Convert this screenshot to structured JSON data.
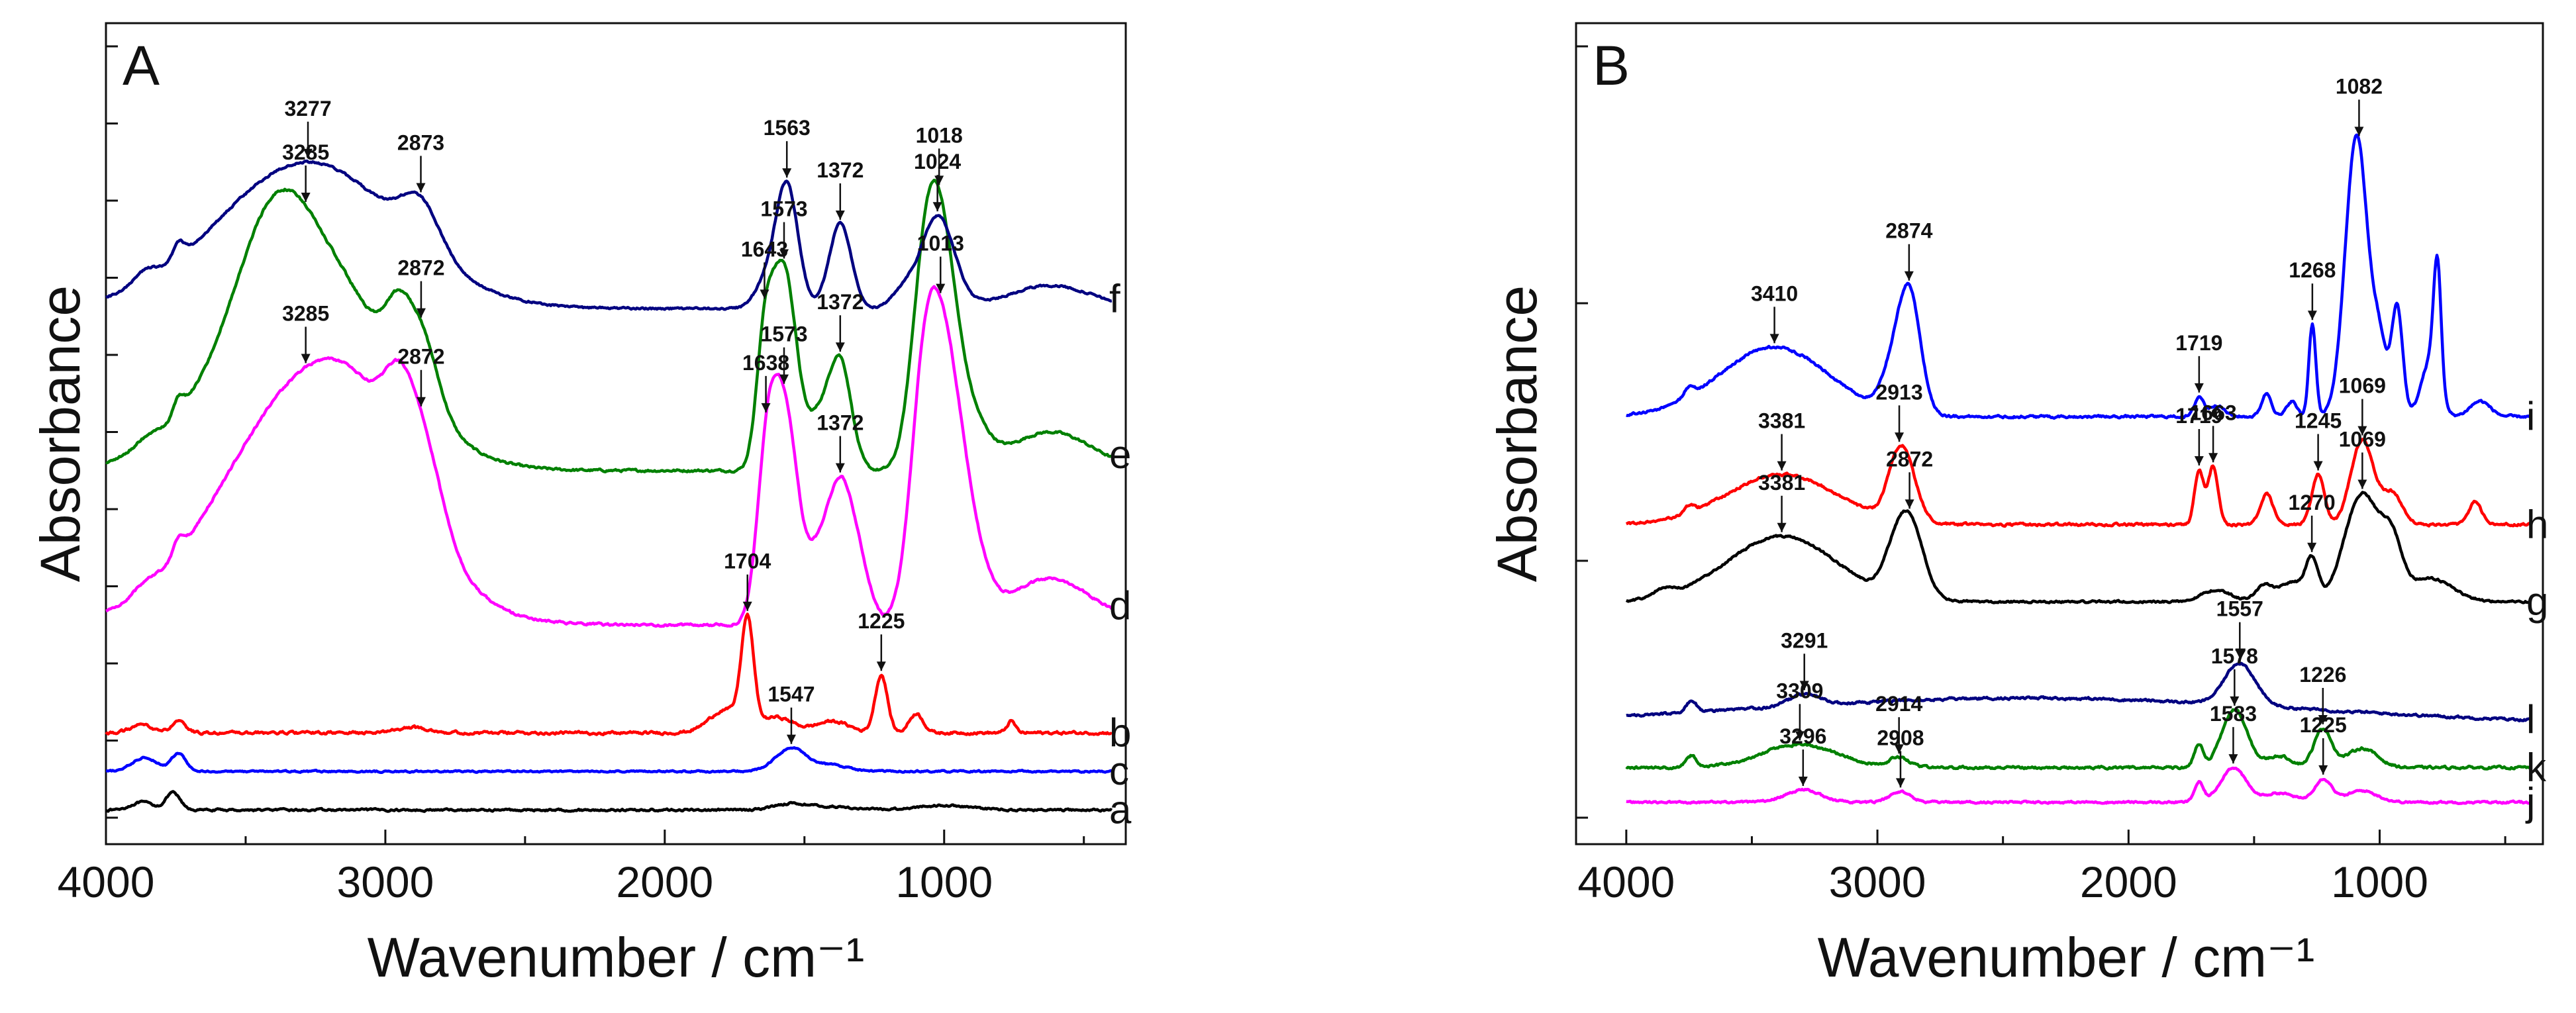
{
  "chart_data": [
    {
      "type": "line",
      "panel": "A",
      "xlabel": "Wavenumber / cm⁻¹",
      "ylabel": "Absorbance",
      "xlim": [
        4000,
        350
      ],
      "ylim": [
        0,
        100
      ],
      "xticks": [
        4000,
        3000,
        2000,
        1000
      ],
      "xtick_labels": [
        "4000",
        "3000",
        "2000",
        "1000"
      ],
      "yticks": [
        0,
        10,
        20,
        30,
        40,
        50,
        60,
        70,
        80,
        90,
        100
      ],
      "series": [
        {
          "name": "a",
          "color": "#000000",
          "baseline": 1.0,
          "noise": 0.25,
          "feats": [
            [
              3760,
              2.2,
              25
            ],
            [
              3870,
              1.0,
              40
            ],
            [
              1550,
              0.8,
              60
            ],
            [
              1400,
              0.4,
              80
            ],
            [
              1000,
              0.6,
              100
            ]
          ],
          "peaks": []
        },
        {
          "name": "c",
          "color": "#0000ff",
          "baseline": 6.0,
          "noise": 0.2,
          "feats": [
            [
              3860,
              1.8,
              45
            ],
            [
              3740,
              2.3,
              25
            ],
            [
              1547,
              3.0,
              55
            ],
            [
              1400,
              0.8,
              60
            ]
          ],
          "peaks": [
            {
              "x": 1547,
              "label": "1547"
            }
          ]
        },
        {
          "name": "b",
          "color": "#ff0000",
          "baseline": 11.0,
          "noise": 0.35,
          "feats": [
            [
              3870,
              1.0,
              40
            ],
            [
              3740,
              1.4,
              25
            ],
            [
              2900,
              0.7,
              60
            ],
            [
              1704,
              13.5,
              22
            ],
            [
              1780,
              3.0,
              60
            ],
            [
              1600,
              2.0,
              60
            ],
            [
              1400,
              1.5,
              60
            ],
            [
              1225,
              7.5,
              22
            ],
            [
              1100,
              2.5,
              25
            ],
            [
              760,
              1.5,
              15
            ]
          ],
          "peaks": [
            {
              "x": 1704,
              "label": "1704"
            },
            {
              "x": 1225,
              "label": "1225"
            }
          ]
        },
        {
          "name": "d",
          "color": "#ff00ff",
          "baseline": 25.0,
          "noise": 0.3,
          "feats": [
            [
              3285,
              30,
              300
            ],
            [
              3050,
              8,
              180
            ],
            [
              2872,
              10,
              70
            ],
            [
              2960,
              6,
              50
            ],
            [
              3740,
              2,
              20
            ],
            [
              3860,
              1,
              40
            ],
            [
              1638,
              15,
              35
            ],
            [
              1573,
              28,
              50
            ],
            [
              1372,
              17,
              45
            ],
            [
              1450,
              7,
              40
            ],
            [
              1300,
              6,
              40
            ],
            [
              1013,
              37,
              70
            ],
            [
              1080,
              13,
              45
            ],
            [
              900,
              6,
              60
            ],
            [
              620,
              6,
              150
            ]
          ],
          "peaks": [
            {
              "x": 3285,
              "label": "3285"
            },
            {
              "x": 2872,
              "label": "2872"
            },
            {
              "x": 1638,
              "label": "1638"
            },
            {
              "x": 1573,
              "label": "1573"
            },
            {
              "x": 1372,
              "label": "1372"
            },
            {
              "x": 1013,
              "label": "1013"
            }
          ]
        },
        {
          "name": "e",
          "color": "#008000",
          "baseline": 45.0,
          "noise": 0.3,
          "feats": [
            [
              3285,
              28,
              280
            ],
            [
              3400,
              10,
              120
            ],
            [
              2872,
              9,
              60
            ],
            [
              2960,
              6,
              45
            ],
            [
              3740,
              2,
              20
            ],
            [
              3860,
              1,
              40
            ],
            [
              1643,
              14,
              30
            ],
            [
              1573,
              26,
              45
            ],
            [
              1372,
              14,
              40
            ],
            [
              1450,
              6,
              40
            ],
            [
              1018,
              31,
              60
            ],
            [
              1080,
              12,
              45
            ],
            [
              900,
              5,
              60
            ],
            [
              620,
              5,
              150
            ]
          ],
          "peaks": [
            {
              "x": 3285,
              "label": "3285"
            },
            {
              "x": 2872,
              "label": "2872"
            },
            {
              "x": 1643,
              "label": "1643"
            },
            {
              "x": 1573,
              "label": "1573"
            },
            {
              "x": 1372,
              "label": "1372"
            },
            {
              "x": 1018,
              "label": "1018"
            }
          ]
        },
        {
          "name": "f",
          "color": "#000080",
          "baseline": 66.0,
          "noise": 0.25,
          "feats": [
            [
              3277,
              19,
              320
            ],
            [
              2873,
              6,
              70
            ],
            [
              3740,
              2,
              20
            ],
            [
              3860,
              1.5,
              40
            ],
            [
              1563,
              16,
              40
            ],
            [
              1640,
              3,
              40
            ],
            [
              1372,
              11,
              40
            ],
            [
              1024,
              12,
              60
            ],
            [
              1150,
              2,
              40
            ],
            [
              620,
              3,
              150
            ]
          ],
          "peaks": [
            {
              "x": 3277,
              "label": "3277"
            },
            {
              "x": 2873,
              "label": "2873"
            },
            {
              "x": 1563,
              "label": "1563"
            },
            {
              "x": 1372,
              "label": "1372"
            },
            {
              "x": 1024,
              "label": "1024"
            }
          ]
        }
      ]
    },
    {
      "type": "line",
      "panel": "B",
      "xlabel": "Wavenumber / cm⁻¹",
      "ylabel": "Absorbance",
      "xlim": [
        4200,
        350
      ],
      "ylim": [
        0,
        100
      ],
      "xticks": [
        4000,
        3000,
        2000,
        1000
      ],
      "xtick_labels": [
        "4000",
        "3000",
        "2000",
        "1000"
      ],
      "yticks": [
        0,
        33.3,
        66.7,
        100
      ],
      "series": [
        {
          "name": "j",
          "color": "#ff00ff",
          "baseline": 2.0,
          "noise": 0.25,
          "feats": [
            [
              3296,
              1.6,
              70
            ],
            [
              2908,
              1.4,
              40
            ],
            [
              1720,
              2.5,
              18
            ],
            [
              1583,
              4.5,
              50
            ],
            [
              1400,
              1.2,
              60
            ],
            [
              1225,
              3.0,
              35
            ],
            [
              1070,
              1.5,
              60
            ]
          ],
          "peaks": [
            {
              "x": 3296,
              "label": "3296"
            },
            {
              "x": 2908,
              "label": "2908"
            },
            {
              "x": 1583,
              "label": "1583"
            },
            {
              "x": 1225,
              "label": "1225"
            }
          ]
        },
        {
          "name": "k",
          "color": "#008000",
          "baseline": 6.5,
          "noise": 0.3,
          "feats": [
            [
              3309,
              3.0,
              150
            ],
            [
              3740,
              1.5,
              20
            ],
            [
              2914,
              1.2,
              40
            ],
            [
              1720,
              3.0,
              18
            ],
            [
              1578,
              7.5,
              50
            ],
            [
              1226,
              5.0,
              35
            ],
            [
              1400,
              1.5,
              50
            ],
            [
              1070,
              2.5,
              60
            ]
          ],
          "peaks": [
            {
              "x": 3309,
              "label": "3309"
            },
            {
              "x": 2914,
              "label": "2914"
            },
            {
              "x": 1578,
              "label": "1578"
            },
            {
              "x": 1226,
              "label": "1226"
            }
          ]
        },
        {
          "name": "l",
          "color": "#000080",
          "baseline": 12.0,
          "noise": 0.3,
          "feats": [
            [
              3291,
              1.5,
              60
            ],
            [
              3740,
              1.5,
              20
            ],
            [
              2400,
              3.5,
              1100
            ],
            [
              1557,
              5.5,
              60
            ]
          ],
          "peaks": [
            {
              "x": 3291,
              "label": "3291"
            },
            {
              "x": 1557,
              "label": "1557"
            }
          ]
        },
        {
          "name": "g",
          "color": "#000000",
          "baseline": 28.0,
          "noise": 0.25,
          "feats": [
            [
              3381,
              8.5,
              220
            ],
            [
              3850,
              1.0,
              40
            ],
            [
              2872,
              10.0,
              55
            ],
            [
              2940,
              3.0,
              45
            ],
            [
              1650,
              1.5,
              60
            ],
            [
              1460,
              2.0,
              35
            ],
            [
              1350,
              2.5,
              50
            ],
            [
              1270,
              5.0,
              25
            ],
            [
              1069,
              14.0,
              70
            ],
            [
              950,
              6.0,
              40
            ],
            [
              800,
              3.0,
              90
            ]
          ],
          "peaks": [
            {
              "x": 3381,
              "label": "3381"
            },
            {
              "x": 2872,
              "label": "2872"
            },
            {
              "x": 1270,
              "label": "1270"
            },
            {
              "x": 1069,
              "label": "1069"
            }
          ]
        },
        {
          "name": "h",
          "color": "#ff0000",
          "baseline": 38.0,
          "noise": 0.3,
          "feats": [
            [
              3381,
              6.5,
              220
            ],
            [
              3750,
              1.0,
              20
            ],
            [
              2913,
              8.5,
              45
            ],
            [
              2860,
              2.5,
              40
            ],
            [
              1719,
              7.0,
              18
            ],
            [
              1663,
              7.5,
              20
            ],
            [
              1450,
              4.0,
              25
            ],
            [
              1245,
              6.5,
              25
            ],
            [
              1069,
              11.0,
              45
            ],
            [
              950,
              4.0,
              40
            ],
            [
              620,
              3.0,
              25
            ]
          ],
          "peaks": [
            {
              "x": 3381,
              "label": "3381"
            },
            {
              "x": 2913,
              "label": "2913"
            },
            {
              "x": 1719,
              "label": "1719"
            },
            {
              "x": 1663,
              "label": "1663"
            },
            {
              "x": 1245,
              "label": "1245"
            },
            {
              "x": 1069,
              "label": "1069"
            }
          ]
        },
        {
          "name": "i",
          "color": "#0000ff",
          "baseline": 52.0,
          "noise": 0.3,
          "feats": [
            [
              3410,
              9.0,
              220
            ],
            [
              3750,
              1.2,
              20
            ],
            [
              2874,
              16.0,
              45
            ],
            [
              2950,
              4.0,
              40
            ],
            [
              1719,
              2.5,
              18
            ],
            [
              1650,
              1.5,
              30
            ],
            [
              1450,
              3.0,
              20
            ],
            [
              1350,
              2.0,
              20
            ],
            [
              1268,
              12.0,
              14
            ],
            [
              1082,
              28.0,
              40
            ],
            [
              1120,
              12.0,
              40
            ],
            [
              1000,
              9.0,
              30
            ],
            [
              930,
              14.0,
              22
            ],
            [
              800,
              7.0,
              35
            ],
            [
              770,
              16.0,
              15
            ],
            [
              600,
              2.0,
              40
            ]
          ],
          "peaks": [
            {
              "x": 3410,
              "label": "3410"
            },
            {
              "x": 2874,
              "label": "2874"
            },
            {
              "x": 1719,
              "label": "1719"
            },
            {
              "x": 1268,
              "label": "1268"
            },
            {
              "x": 1082,
              "label": "1082"
            }
          ]
        }
      ]
    }
  ],
  "colors": {
    "frame": "#111111",
    "background": "#ffffff"
  }
}
